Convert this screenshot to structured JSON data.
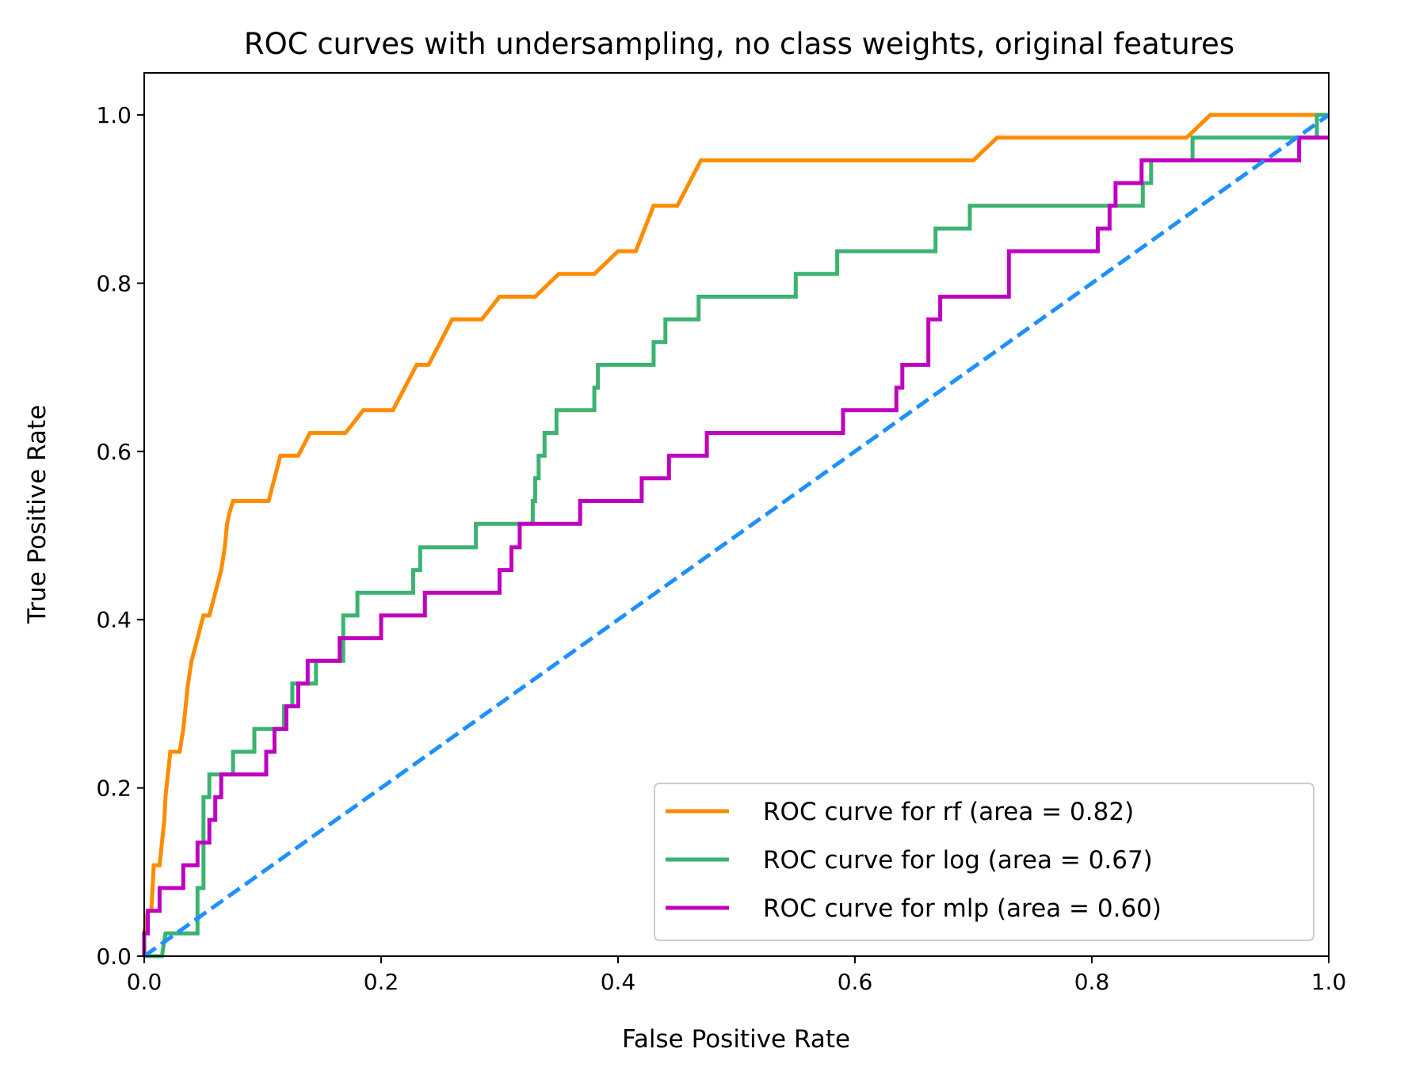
{
  "chart_data": {
    "type": "line",
    "title": "ROC curves with undersampling, no class weights, original features",
    "xlabel": "False Positive Rate",
    "ylabel": "True Positive Rate",
    "xlim": [
      0.0,
      1.0
    ],
    "ylim": [
      0.0,
      1.05
    ],
    "x_ticks": [
      "0.0",
      "0.2",
      "0.4",
      "0.6",
      "0.8",
      "1.0"
    ],
    "y_ticks": [
      "0.0",
      "0.2",
      "0.4",
      "0.6",
      "0.8",
      "1.0"
    ],
    "grid": false,
    "legend_position": "lower-right",
    "series": [
      {
        "name": "ROC curve for rf (area = 0.82)",
        "color": "#ff8c00",
        "style": "solid",
        "x": [
          0.0,
          0.0,
          0.003,
          0.006,
          0.008,
          0.013,
          0.015,
          0.017,
          0.018,
          0.02,
          0.022,
          0.025,
          0.03,
          0.033,
          0.037,
          0.04,
          0.045,
          0.05,
          0.055,
          0.06,
          0.065,
          0.068,
          0.07,
          0.072,
          0.075,
          0.077,
          0.105,
          0.115,
          0.12,
          0.13,
          0.14,
          0.16,
          0.17,
          0.185,
          0.2,
          0.21,
          0.22,
          0.23,
          0.24,
          0.25,
          0.26,
          0.285,
          0.3,
          0.31,
          0.33,
          0.35,
          0.36,
          0.375,
          0.38,
          0.4,
          0.415,
          0.43,
          0.435,
          0.45,
          0.46,
          0.47,
          0.485,
          0.52,
          0.6,
          0.7,
          0.72,
          0.73,
          0.88,
          0.9,
          1.0
        ],
        "y": [
          0.0,
          0.027,
          0.054,
          0.054,
          0.108,
          0.108,
          0.135,
          0.162,
          0.19,
          0.216,
          0.243,
          0.243,
          0.243,
          0.27,
          0.324,
          0.351,
          0.378,
          0.405,
          0.405,
          0.432,
          0.459,
          0.486,
          0.514,
          0.527,
          0.541,
          0.541,
          0.541,
          0.595,
          0.595,
          0.595,
          0.622,
          0.622,
          0.622,
          0.649,
          0.649,
          0.649,
          0.676,
          0.703,
          0.703,
          0.73,
          0.757,
          0.757,
          0.784,
          0.784,
          0.784,
          0.811,
          0.811,
          0.811,
          0.811,
          0.838,
          0.838,
          0.892,
          0.892,
          0.892,
          0.919,
          0.946,
          0.946,
          0.946,
          0.946,
          0.946,
          0.973,
          0.973,
          0.973,
          1.0,
          1.0
        ]
      },
      {
        "name": "ROC curve for log (area = 0.67)",
        "color": "#3cb371",
        "style": "solid",
        "x": [
          0.0,
          0.015,
          0.015,
          0.018,
          0.018,
          0.045,
          0.045,
          0.05,
          0.05,
          0.055,
          0.055,
          0.075,
          0.075,
          0.093,
          0.093,
          0.118,
          0.118,
          0.125,
          0.125,
          0.14,
          0.14,
          0.145,
          0.145,
          0.168,
          0.168,
          0.18,
          0.18,
          0.227,
          0.227,
          0.233,
          0.233,
          0.28,
          0.28,
          0.328,
          0.328,
          0.33,
          0.33,
          0.333,
          0.333,
          0.338,
          0.338,
          0.343,
          0.343,
          0.348,
          0.348,
          0.38,
          0.38,
          0.383,
          0.383,
          0.43,
          0.43,
          0.44,
          0.44,
          0.468,
          0.468,
          0.55,
          0.55,
          0.585,
          0.585,
          0.668,
          0.668,
          0.697,
          0.697,
          0.843,
          0.843,
          0.85,
          0.85,
          0.885,
          0.885,
          0.99,
          0.99,
          1.0
        ],
        "y": [
          0.0,
          0.0,
          0.0,
          0.027,
          0.027,
          0.027,
          0.081,
          0.081,
          0.189,
          0.189,
          0.216,
          0.216,
          0.243,
          0.243,
          0.27,
          0.27,
          0.297,
          0.297,
          0.324,
          0.324,
          0.324,
          0.324,
          0.351,
          0.351,
          0.405,
          0.405,
          0.432,
          0.432,
          0.459,
          0.459,
          0.486,
          0.486,
          0.514,
          0.514,
          0.541,
          0.541,
          0.568,
          0.568,
          0.595,
          0.595,
          0.622,
          0.622,
          0.622,
          0.622,
          0.649,
          0.649,
          0.676,
          0.676,
          0.703,
          0.703,
          0.73,
          0.73,
          0.757,
          0.757,
          0.784,
          0.784,
          0.811,
          0.811,
          0.838,
          0.838,
          0.865,
          0.865,
          0.892,
          0.892,
          0.919,
          0.919,
          0.946,
          0.946,
          0.973,
          0.973,
          1.0,
          1.0
        ]
      },
      {
        "name": "ROC curve for mlp (area = 0.60)",
        "color": "#c000c0",
        "style": "solid",
        "x": [
          0.0,
          0.0,
          0.003,
          0.003,
          0.013,
          0.013,
          0.033,
          0.033,
          0.045,
          0.045,
          0.055,
          0.055,
          0.06,
          0.06,
          0.063,
          0.063,
          0.065,
          0.065,
          0.103,
          0.103,
          0.11,
          0.11,
          0.12,
          0.12,
          0.13,
          0.13,
          0.138,
          0.138,
          0.165,
          0.165,
          0.2,
          0.2,
          0.237,
          0.237,
          0.25,
          0.25,
          0.3,
          0.3,
          0.31,
          0.31,
          0.317,
          0.317,
          0.368,
          0.368,
          0.42,
          0.42,
          0.443,
          0.443,
          0.46,
          0.46,
          0.475,
          0.475,
          0.59,
          0.59,
          0.635,
          0.635,
          0.64,
          0.64,
          0.662,
          0.662,
          0.672,
          0.672,
          0.73,
          0.73,
          0.805,
          0.805,
          0.815,
          0.815,
          0.82,
          0.82,
          0.832,
          0.832,
          0.842,
          0.842,
          0.975,
          0.975,
          1.0
        ],
        "y": [
          0.0,
          0.027,
          0.027,
          0.054,
          0.054,
          0.081,
          0.081,
          0.108,
          0.108,
          0.135,
          0.135,
          0.162,
          0.162,
          0.189,
          0.189,
          0.189,
          0.189,
          0.216,
          0.216,
          0.243,
          0.243,
          0.27,
          0.27,
          0.297,
          0.297,
          0.324,
          0.324,
          0.351,
          0.351,
          0.378,
          0.378,
          0.405,
          0.405,
          0.432,
          0.432,
          0.432,
          0.432,
          0.459,
          0.459,
          0.486,
          0.486,
          0.514,
          0.514,
          0.541,
          0.541,
          0.568,
          0.568,
          0.595,
          0.595,
          0.595,
          0.595,
          0.622,
          0.622,
          0.649,
          0.649,
          0.676,
          0.676,
          0.703,
          0.703,
          0.757,
          0.757,
          0.784,
          0.784,
          0.838,
          0.838,
          0.865,
          0.865,
          0.892,
          0.892,
          0.919,
          0.919,
          0.919,
          0.919,
          0.946,
          0.946,
          0.973,
          0.973
        ]
      },
      {
        "name": "",
        "color": "#1e90ff",
        "style": "dashed",
        "x": [
          0.0,
          1.0
        ],
        "y": [
          0.0,
          1.0
        ]
      }
    ]
  }
}
